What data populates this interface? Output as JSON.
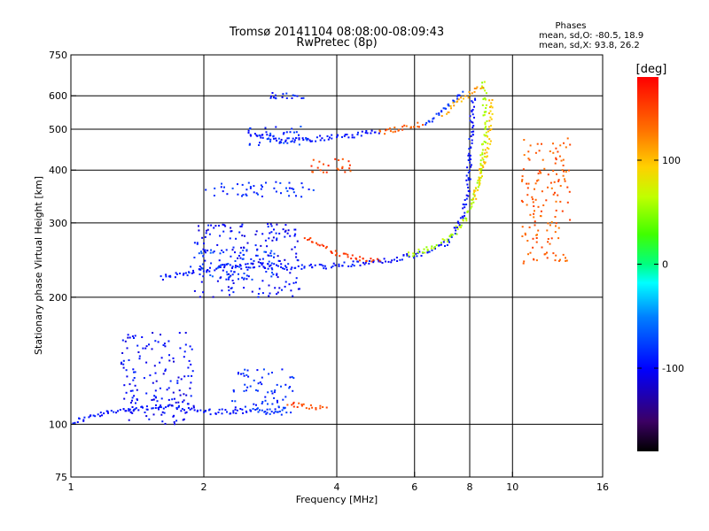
{
  "chart_data": {
    "type": "scatter",
    "title": "Tromsø 20141104 08:08:00-08:09:43",
    "subtitle": "RwPretec (8p)",
    "xlabel": "Frequency [MHz]",
    "ylabel": "Stationary phase Virtual Height [km]",
    "x_scale": "log",
    "y_scale": "log",
    "xlim": [
      1,
      16
    ],
    "ylim": [
      75,
      750
    ],
    "x_ticks": [
      1,
      2,
      4,
      6,
      8,
      10,
      16
    ],
    "y_ticks": [
      75,
      100,
      200,
      300,
      400,
      500,
      600,
      750
    ],
    "x_gridlines": [
      2,
      4,
      6,
      8,
      10
    ],
    "y_gridlines": [
      100,
      200,
      300,
      400,
      500,
      600
    ],
    "grid": true,
    "stats": {
      "title": "Phases",
      "line_o": "mean, sd,O: -80.5, 18.9",
      "line_x": "mean, sd,X:  93.8, 26.2"
    },
    "colorbar": {
      "label": "[deg]",
      "range": [
        -180,
        180
      ],
      "ticks": [
        100,
        0,
        -100
      ],
      "tick_labels": [
        "100",
        "0",
        "-100"
      ]
    },
    "traces": [
      {
        "kind": "curve",
        "phase": -95,
        "points": [
          [
            1.0,
            101
          ],
          [
            1.1,
            104
          ],
          [
            1.25,
            107
          ],
          [
            1.4,
            109
          ],
          [
            1.6,
            110
          ],
          [
            1.8,
            109
          ],
          [
            2.0,
            107
          ],
          [
            2.3,
            107
          ],
          [
            2.6,
            108
          ]
        ]
      },
      {
        "kind": "curve",
        "phase": -80,
        "points": [
          [
            2.6,
            108
          ],
          [
            2.8,
            107
          ],
          [
            3.0,
            108
          ],
          [
            3.1,
            108
          ]
        ]
      },
      {
        "kind": "curve",
        "phase": 150,
        "points": [
          [
            3.1,
            111
          ],
          [
            3.3,
            111
          ],
          [
            3.5,
            110
          ],
          [
            3.8,
            108
          ]
        ]
      },
      {
        "kind": "curve",
        "phase": -95,
        "points": [
          [
            1.6,
            222
          ],
          [
            1.8,
            228
          ],
          [
            2.0,
            232
          ],
          [
            2.3,
            237
          ],
          [
            2.7,
            238
          ],
          [
            3.2,
            236
          ],
          [
            3.7,
            236
          ],
          [
            4.5,
            240
          ],
          [
            5.5,
            246
          ],
          [
            6.5,
            256
          ],
          [
            7.2,
            272
          ],
          [
            7.6,
            300
          ],
          [
            7.9,
            350
          ],
          [
            8.0,
            420
          ],
          [
            8.1,
            520
          ],
          [
            8.15,
            600
          ]
        ]
      },
      {
        "kind": "curve",
        "phase": 155,
        "points": [
          [
            3.4,
            278
          ],
          [
            3.7,
            265
          ],
          [
            4.0,
            255
          ],
          [
            4.4,
            247
          ],
          [
            5.0,
            242
          ]
        ]
      },
      {
        "kind": "curve",
        "phase": 60,
        "points": [
          [
            5.8,
            252
          ],
          [
            6.5,
            260
          ],
          [
            7.2,
            275
          ],
          [
            7.7,
            300
          ],
          [
            8.1,
            330
          ],
          [
            8.4,
            380
          ],
          [
            8.6,
            450
          ],
          [
            8.7,
            520
          ],
          [
            8.65,
            600
          ],
          [
            8.55,
            650
          ]
        ]
      },
      {
        "kind": "curve",
        "phase": 100,
        "points": [
          [
            8.2,
            340
          ],
          [
            8.5,
            400
          ],
          [
            8.8,
            460
          ],
          [
            8.95,
            520
          ],
          [
            8.9,
            600
          ]
        ]
      },
      {
        "kind": "curve",
        "phase": -95,
        "points": [
          [
            2.5,
            490
          ],
          [
            3.0,
            470
          ],
          [
            3.6,
            475
          ],
          [
            4.3,
            483
          ],
          [
            5.0,
            493
          ]
        ]
      },
      {
        "kind": "curve",
        "phase": 140,
        "points": [
          [
            5.0,
            493
          ],
          [
            5.8,
            505
          ],
          [
            6.3,
            515
          ]
        ]
      },
      {
        "kind": "curve",
        "phase": -80,
        "points": [
          [
            6.3,
            515
          ],
          [
            6.9,
            545
          ],
          [
            7.4,
            585
          ],
          [
            7.7,
            620
          ]
        ]
      },
      {
        "kind": "curve",
        "phase": 110,
        "points": [
          [
            7.0,
            545
          ],
          [
            7.7,
            590
          ],
          [
            8.3,
            625
          ],
          [
            8.6,
            640
          ]
        ]
      },
      {
        "kind": "cloud",
        "phase": -100,
        "x": [
          1.9,
          3.3
        ],
        "y": [
          200,
          300
        ]
      },
      {
        "kind": "cloud",
        "phase": -75,
        "x": [
          1.85,
          2.9
        ],
        "y": [
          220,
          260
        ]
      },
      {
        "kind": "cloud",
        "phase": -85,
        "x": [
          2.0,
          3.6
        ],
        "y": [
          345,
          375
        ]
      },
      {
        "kind": "cloud",
        "phase": -100,
        "x": [
          1.3,
          1.9
        ],
        "y": [
          100,
          165
        ]
      },
      {
        "kind": "cloud",
        "phase": -85,
        "x": [
          2.3,
          3.2
        ],
        "y": [
          105,
          135
        ]
      },
      {
        "kind": "cloud",
        "phase": -80,
        "x": [
          2.5,
          3.5
        ],
        "y": [
          455,
          510
        ]
      },
      {
        "kind": "cloud",
        "phase": -90,
        "x": [
          2.8,
          3.4
        ],
        "y": [
          590,
          610
        ]
      },
      {
        "kind": "cloud",
        "phase": 150,
        "x": [
          3.5,
          4.3
        ],
        "y": [
          395,
          425
        ]
      },
      {
        "kind": "cloud",
        "phase": 140,
        "x": [
          10.5,
          13.5
        ],
        "y": [
          240,
          480
        ]
      }
    ]
  }
}
